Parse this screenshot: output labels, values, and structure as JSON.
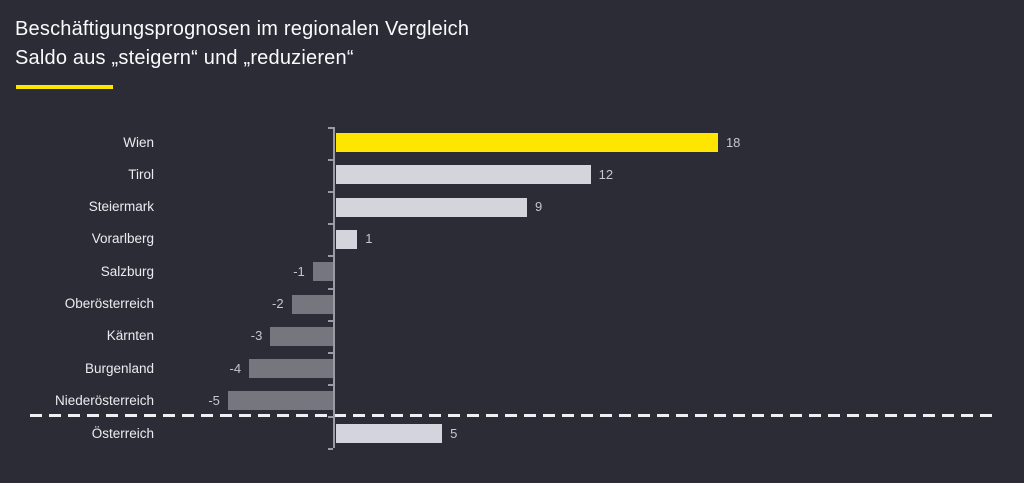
{
  "header": {
    "title": "Beschäftigungsprognosen im regionalen Vergleich",
    "subtitle": "Saldo aus „steigern“ und „reduzieren“"
  },
  "colors": {
    "background": "#2c2c36",
    "accent": "#ffe600",
    "bar_positive": "#d4d4dc",
    "bar_negative": "#76767f",
    "bar_highlight": "#ffe600",
    "axis": "#9b9ba5",
    "category_label": "#ececf0",
    "value_label": "#c6c6ce",
    "separator": "#f0f0f2"
  },
  "chart_data": {
    "type": "bar",
    "orientation": "horizontal",
    "title": "Beschäftigungsprognosen im regionalen Vergleich",
    "subtitle": "Saldo aus „steigern“ und „reduzieren“",
    "categories": [
      "Wien",
      "Tirol",
      "Steiermark",
      "Vorarlberg",
      "Salzburg",
      "Oberösterreich",
      "Kärnten",
      "Burgenland",
      "Niederösterreich"
    ],
    "values": [
      18,
      12,
      9,
      1,
      -1,
      -2,
      -3,
      -4,
      -5
    ],
    "summary": {
      "category": "Österreich",
      "value": 5
    },
    "highlight_category": "Wien",
    "separator_style": "dashed",
    "xlim": [
      -5,
      32
    ],
    "grid": false,
    "legend": false,
    "data_labels": true
  }
}
